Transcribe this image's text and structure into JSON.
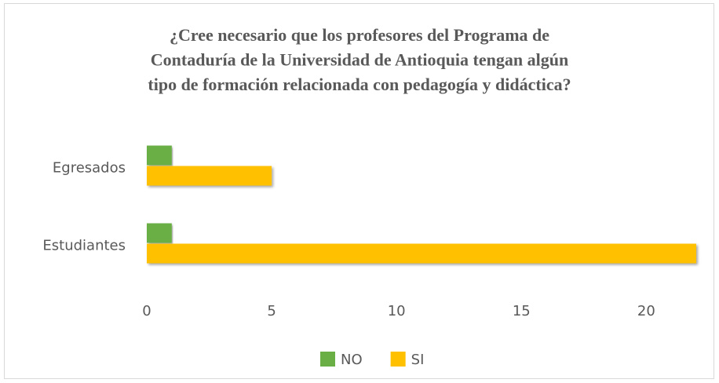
{
  "chart_data": {
    "type": "bar",
    "orientation": "horizontal",
    "title": [
      "¿Cree necesario que los profesores del Programa de",
      "Contaduría de la Universidad de Antioquia tengan algún",
      "tipo de formación relacionada con pedagogía y didáctica?"
    ],
    "categories": [
      "Egresados",
      "Estudiantes"
    ],
    "series": [
      {
        "name": "NO",
        "color": "#6aaf45",
        "values": [
          1,
          1
        ]
      },
      {
        "name": "SI",
        "color": "#ffc000",
        "values": [
          5,
          22
        ]
      }
    ],
    "xlim": [
      0,
      22
    ],
    "xticks": [
      0,
      5,
      10,
      15,
      20
    ],
    "legend": "bottom"
  }
}
